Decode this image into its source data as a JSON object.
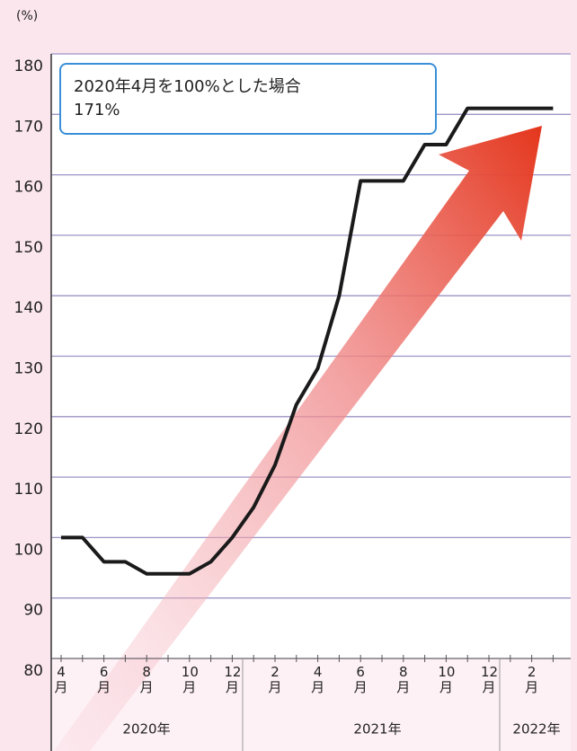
{
  "chart_data": {
    "type": "line",
    "y_unit": "(%)",
    "annotation": [
      "2020年4月を100%とした場合",
      "171%"
    ],
    "categories": [
      "4月",
      null,
      "6月",
      null,
      "8月",
      null,
      "10月",
      null,
      "12月",
      null,
      "2月",
      null,
      "4月",
      null,
      "6月",
      null,
      "8月",
      null,
      "10月",
      null,
      "12月",
      null,
      "2月",
      null
    ],
    "years": [
      "2020年",
      "2021年",
      "2022年"
    ],
    "series": [
      {
        "name": null,
        "color": "#1a1a1a",
        "values": [
          100,
          100,
          96,
          96,
          94,
          94,
          94,
          96,
          100,
          105,
          112,
          122,
          128,
          140,
          159,
          159,
          159,
          165,
          165,
          171,
          171,
          171,
          171,
          171
        ]
      }
    ],
    "ylim": [
      80,
      180
    ],
    "yticks": [
      80,
      90,
      100,
      110,
      120,
      130,
      140,
      150,
      160,
      170,
      180
    ],
    "grid": true
  }
}
